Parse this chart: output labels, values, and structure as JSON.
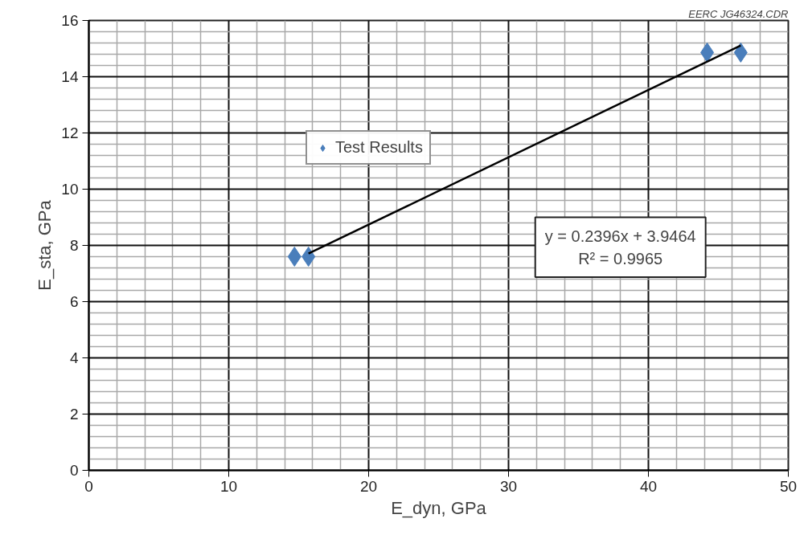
{
  "chart_data": {
    "type": "scatter",
    "xlabel": "E_dyn, GPa",
    "ylabel": "E_sta, GPa",
    "series": [
      {
        "name": "Test Results",
        "color": "#4a7ebb",
        "marker": "diamond",
        "x": [
          14.7,
          15.7,
          44.2,
          46.6
        ],
        "values": [
          7.6,
          7.6,
          14.86,
          14.86
        ]
      },
      {
        "type": "line",
        "color": "#000000",
        "x": [
          15.7,
          46.6
        ],
        "values": [
          7.71,
          15.11
        ]
      }
    ],
    "xlim": [
      0,
      50
    ],
    "xticks": [
      0,
      10,
      20,
      30,
      40,
      50
    ],
    "ylim": [
      0,
      16
    ],
    "yticks": [
      0,
      2,
      4,
      6,
      8,
      10,
      12,
      14,
      16
    ],
    "grid": true,
    "legend": "top left",
    "annotations": [
      "y = 0.2396x + 3.9464\nR² = 0.9965",
      "EERC JG46324.CDR"
    ]
  }
}
